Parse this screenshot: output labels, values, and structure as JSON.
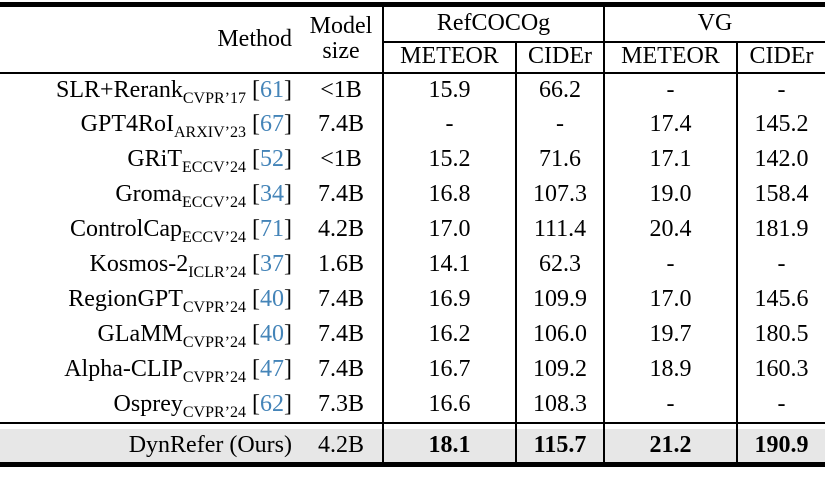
{
  "table": {
    "header": {
      "method_label": "Method",
      "model_size_line1": "Model",
      "model_size_line2": "size",
      "groups": [
        {
          "label": "RefCOCOg",
          "cols": [
            "METEOR",
            "CIDEr"
          ]
        },
        {
          "label": "VG",
          "cols": [
            "METEOR",
            "CIDEr"
          ]
        }
      ]
    },
    "rows": [
      {
        "method": "SLR+Rerank",
        "venue": "CVPR’17",
        "cite": "61",
        "model_size": "<1B",
        "refcocog_meteor": "15.9",
        "refcocog_cider": "66.2",
        "vg_meteor": "-",
        "vg_cider": "-"
      },
      {
        "method": "GPT4RoI",
        "venue": "ARXIV’23",
        "cite": "67",
        "model_size": "7.4B",
        "refcocog_meteor": "-",
        "refcocog_cider": "-",
        "vg_meteor": "17.4",
        "vg_cider": "145.2"
      },
      {
        "method": "GRiT",
        "venue": "ECCV’24",
        "cite": "52",
        "model_size": "<1B",
        "refcocog_meteor": "15.2",
        "refcocog_cider": "71.6",
        "vg_meteor": "17.1",
        "vg_cider": "142.0"
      },
      {
        "method": "Groma",
        "venue": "ECCV’24",
        "cite": "34",
        "model_size": "7.4B",
        "refcocog_meteor": "16.8",
        "refcocog_cider": "107.3",
        "vg_meteor": "19.0",
        "vg_cider": "158.4"
      },
      {
        "method": "ControlCap",
        "venue": "ECCV’24",
        "cite": "71",
        "model_size": "4.2B",
        "refcocog_meteor": "17.0",
        "refcocog_cider": "111.4",
        "vg_meteor": "20.4",
        "vg_cider": "181.9"
      },
      {
        "method": "Kosmos-2",
        "venue": "ICLR’24",
        "cite": "37",
        "model_size": "1.6B",
        "refcocog_meteor": "14.1",
        "refcocog_cider": "62.3",
        "vg_meteor": "-",
        "vg_cider": "-"
      },
      {
        "method": "RegionGPT",
        "venue": "CVPR’24",
        "cite": "40",
        "model_size": "7.4B",
        "refcocog_meteor": "16.9",
        "refcocog_cider": "109.9",
        "vg_meteor": "17.0",
        "vg_cider": "145.6"
      },
      {
        "method": "GLaMM",
        "venue": "CVPR’24",
        "cite": "40",
        "model_size": "7.4B",
        "refcocog_meteor": "16.2",
        "refcocog_cider": "106.0",
        "vg_meteor": "19.7",
        "vg_cider": "180.5"
      },
      {
        "method": "Alpha-CLIP",
        "venue": "CVPR’24",
        "cite": "47",
        "model_size": "7.4B",
        "refcocog_meteor": "16.7",
        "refcocog_cider": "109.2",
        "vg_meteor": "18.9",
        "vg_cider": "160.3"
      },
      {
        "method": "Osprey",
        "venue": "CVPR’24",
        "cite": "62",
        "model_size": "7.3B",
        "refcocog_meteor": "16.6",
        "refcocog_cider": "108.3",
        "vg_meteor": "-",
        "vg_cider": "-"
      }
    ],
    "ours_row": {
      "method": "DynRefer (Ours)",
      "model_size": "4.2B",
      "refcocog_meteor": "18.1",
      "refcocog_cider": "115.7",
      "vg_meteor": "21.2",
      "vg_cider": "190.9"
    },
    "colors": {
      "citation_blue": "#4484b8",
      "highlight_row_bg": "#e7e7e7",
      "rule_black": "#000000"
    }
  }
}
